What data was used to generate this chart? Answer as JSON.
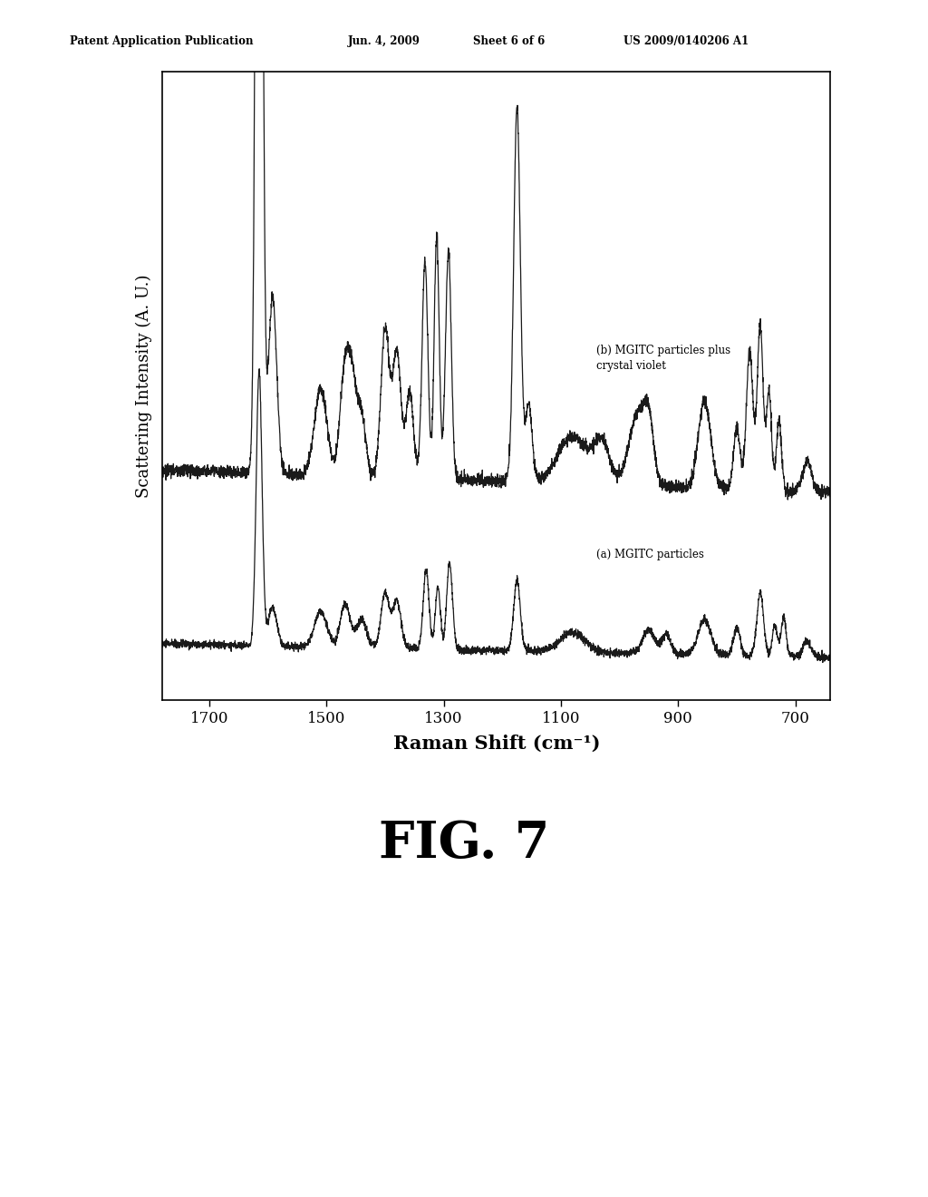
{
  "title_header": "Patent Application Publication",
  "date_header": "Jun. 4, 2009",
  "sheet_header": "Sheet 6 of 6",
  "patent_header": "US 2009/0140206 A1",
  "xlabel": "Raman Shift (cm⁻¹)",
  "ylabel": "Scattering Intensity (A. U.)",
  "fig_label": "FIG. 7",
  "label_a": "(a) MGITC particles",
  "label_b": "(b) MGITC particles plus\ncrystal violet",
  "xticks": [
    1700,
    1500,
    1300,
    1100,
    900,
    700
  ],
  "xtick_labels": [
    "1700",
    "1500",
    "1300",
    "1100",
    "900",
    "700"
  ],
  "background_color": "#ffffff",
  "line_color": "#1a1a1a",
  "line_width": 0.9
}
